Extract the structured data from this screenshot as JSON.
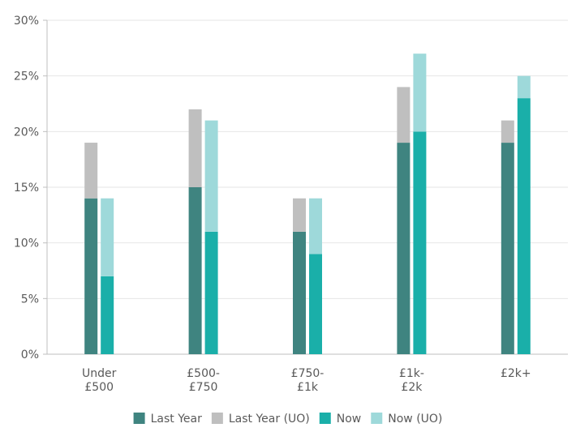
{
  "chart_data": {
    "type": "bar",
    "stacked_groups": true,
    "categories": [
      [
        "Under",
        "£500"
      ],
      [
        "£500-",
        "£750"
      ],
      [
        "£750-",
        "£1k"
      ],
      [
        "£1k-",
        "£2k"
      ],
      [
        "£2k+"
      ]
    ],
    "series": [
      {
        "name": "Last Year",
        "values": [
          14,
          15,
          11,
          19,
          19
        ],
        "color": "#3f8480",
        "stack": "last_year"
      },
      {
        "name": "Last Year (UO)",
        "values": [
          5,
          7,
          3,
          5,
          2
        ],
        "color": "#bfbfbf",
        "stack": "last_year"
      },
      {
        "name": "Now",
        "values": [
          7,
          11,
          9,
          20,
          23
        ],
        "color": "#1aafa9",
        "stack": "now"
      },
      {
        "name": "Now (UO)",
        "values": [
          7,
          10,
          5,
          7,
          2
        ],
        "color": "#9ed9da",
        "stack": "now"
      }
    ],
    "y_ticks": [
      "0%",
      "5%",
      "10%",
      "15%",
      "20%",
      "25%",
      "30%"
    ],
    "ylim": [
      0,
      30
    ],
    "ylabel": "",
    "xlabel": "",
    "grid": true,
    "legend_position": "bottom"
  }
}
